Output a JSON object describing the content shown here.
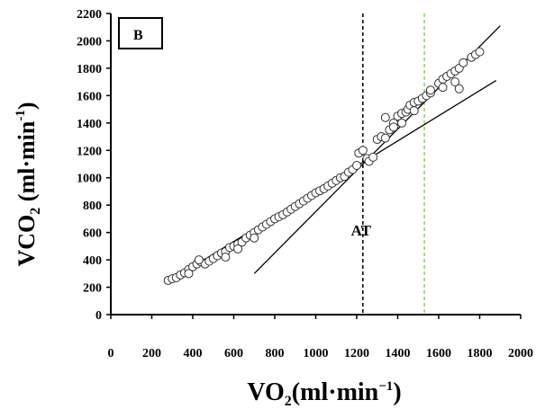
{
  "panel_label": "B",
  "chart_data": {
    "type": "scatter",
    "title": "",
    "xlabel": {
      "base": "V",
      "mid": "O",
      "sub": "2",
      "unit_open": "(ml·min",
      "sup": "−1",
      "unit_close": ")"
    },
    "ylabel": {
      "base": "V",
      "mid": "CO",
      "sub": "2",
      "unit_open": " (ml·min",
      "sup": "-1",
      "unit_close": ")"
    },
    "xlim": [
      0,
      2000
    ],
    "ylim": [
      0,
      2200
    ],
    "x_ticks": [
      0,
      200,
      400,
      600,
      800,
      1000,
      1200,
      1400,
      1600,
      1800,
      2000
    ],
    "y_ticks": [
      0,
      200,
      400,
      600,
      800,
      1000,
      1200,
      1400,
      1600,
      1800,
      2000,
      2200
    ],
    "grid": false,
    "series": [
      {
        "marker": "open-circle",
        "points": [
          [
            280,
            250
          ],
          [
            300,
            262
          ],
          [
            320,
            270
          ],
          [
            340,
            290
          ],
          [
            360,
            305
          ],
          [
            380,
            330
          ],
          [
            400,
            350
          ],
          [
            420,
            370
          ],
          [
            440,
            385
          ],
          [
            460,
            370
          ],
          [
            480,
            390
          ],
          [
            500,
            410
          ],
          [
            520,
            430
          ],
          [
            540,
            450
          ],
          [
            560,
            460
          ],
          [
            580,
            490
          ],
          [
            600,
            500
          ],
          [
            620,
            515
          ],
          [
            640,
            530
          ],
          [
            660,
            560
          ],
          [
            680,
            580
          ],
          [
            700,
            600
          ],
          [
            720,
            620
          ],
          [
            740,
            640
          ],
          [
            760,
            660
          ],
          [
            780,
            680
          ],
          [
            800,
            700
          ],
          [
            820,
            715
          ],
          [
            840,
            730
          ],
          [
            860,
            750
          ],
          [
            880,
            770
          ],
          [
            900,
            790
          ],
          [
            920,
            810
          ],
          [
            940,
            830
          ],
          [
            960,
            850
          ],
          [
            980,
            870
          ],
          [
            1000,
            890
          ],
          [
            1020,
            905
          ],
          [
            1040,
            920
          ],
          [
            1060,
            940
          ],
          [
            1080,
            960
          ],
          [
            1100,
            980
          ],
          [
            1120,
            1000
          ],
          [
            1140,
            1010
          ],
          [
            1160,
            1040
          ],
          [
            1180,
            1060
          ],
          [
            1200,
            1090
          ],
          [
            1210,
            1180
          ],
          [
            1230,
            1200
          ],
          [
            1250,
            1140
          ],
          [
            1260,
            1120
          ],
          [
            1280,
            1150
          ],
          [
            1300,
            1280
          ],
          [
            1320,
            1300
          ],
          [
            1340,
            1290
          ],
          [
            1360,
            1350
          ],
          [
            1380,
            1400
          ],
          [
            1400,
            1450
          ],
          [
            1420,
            1470
          ],
          [
            1440,
            1480
          ],
          [
            1450,
            1500
          ],
          [
            1460,
            1530
          ],
          [
            1480,
            1550
          ],
          [
            1500,
            1560
          ],
          [
            1520,
            1580
          ],
          [
            1540,
            1600
          ],
          [
            1560,
            1620
          ],
          [
            1600,
            1690
          ],
          [
            1620,
            1720
          ],
          [
            1640,
            1740
          ],
          [
            1660,
            1760
          ],
          [
            1680,
            1780
          ],
          [
            1700,
            1800
          ],
          [
            1720,
            1840
          ],
          [
            1760,
            1880
          ],
          [
            1780,
            1900
          ],
          [
            1800,
            1920
          ],
          [
            1340,
            1440
          ],
          [
            1380,
            1370
          ],
          [
            1420,
            1400
          ],
          [
            1480,
            1490
          ],
          [
            1560,
            1640
          ],
          [
            1620,
            1660
          ],
          [
            1680,
            1700
          ],
          [
            1700,
            1650
          ],
          [
            380,
            300
          ],
          [
            430,
            400
          ],
          [
            560,
            420
          ],
          [
            620,
            480
          ],
          [
            700,
            560
          ]
        ]
      }
    ],
    "fit_lines": [
      {
        "from": [
          280,
          240
        ],
        "to": [
          1880,
          1710
        ]
      },
      {
        "from": [
          700,
          300
        ],
        "to": [
          1900,
          2110
        ]
      }
    ],
    "vlines": [
      {
        "x": 1230,
        "color": "#000000",
        "label": "AT"
      },
      {
        "x": 1530,
        "color": "#7ed957",
        "label": ""
      }
    ]
  }
}
